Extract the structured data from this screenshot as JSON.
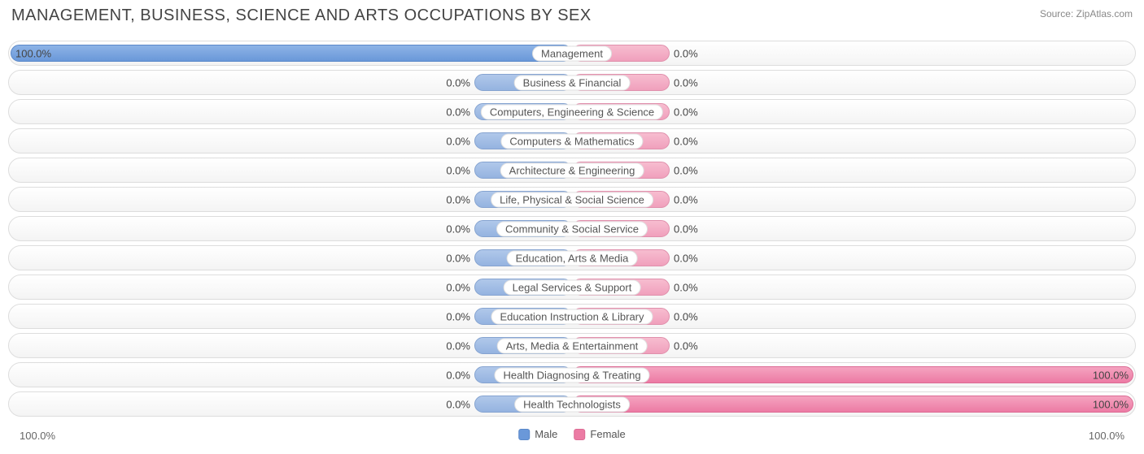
{
  "title": "MANAGEMENT, BUSINESS, SCIENCE AND ARTS OCCUPATIONS BY SEX",
  "source": "Source: ZipAtlas.com",
  "chart": {
    "type": "diverging-bar",
    "male_color": "#6a98d9",
    "male_color_light": "#95b3e0",
    "female_color": "#ec7ba4",
    "female_color_light": "#f0a0bc",
    "border_color": "#dddddd",
    "background_color": "#ffffff",
    "row_bg_gradient": [
      "#ffffff",
      "#f4f4f4"
    ],
    "title_fontsize": 20,
    "label_fontsize": 13,
    "axis_left_label": "100.0%",
    "axis_right_label": "100.0%",
    "legend": {
      "male": "Male",
      "female": "Female"
    },
    "rows": [
      {
        "category": "Management",
        "male_pct": 100.0,
        "female_pct": 0.0,
        "male_label": "100.0%",
        "female_label": "0.0%"
      },
      {
        "category": "Business & Financial",
        "male_pct": 0.0,
        "female_pct": 0.0,
        "male_label": "0.0%",
        "female_label": "0.0%"
      },
      {
        "category": "Computers, Engineering & Science",
        "male_pct": 0.0,
        "female_pct": 0.0,
        "male_label": "0.0%",
        "female_label": "0.0%"
      },
      {
        "category": "Computers & Mathematics",
        "male_pct": 0.0,
        "female_pct": 0.0,
        "male_label": "0.0%",
        "female_label": "0.0%"
      },
      {
        "category": "Architecture & Engineering",
        "male_pct": 0.0,
        "female_pct": 0.0,
        "male_label": "0.0%",
        "female_label": "0.0%"
      },
      {
        "category": "Life, Physical & Social Science",
        "male_pct": 0.0,
        "female_pct": 0.0,
        "male_label": "0.0%",
        "female_label": "0.0%"
      },
      {
        "category": "Community & Social Service",
        "male_pct": 0.0,
        "female_pct": 0.0,
        "male_label": "0.0%",
        "female_label": "0.0%"
      },
      {
        "category": "Education, Arts & Media",
        "male_pct": 0.0,
        "female_pct": 0.0,
        "male_label": "0.0%",
        "female_label": "0.0%"
      },
      {
        "category": "Legal Services & Support",
        "male_pct": 0.0,
        "female_pct": 0.0,
        "male_label": "0.0%",
        "female_label": "0.0%"
      },
      {
        "category": "Education Instruction & Library",
        "male_pct": 0.0,
        "female_pct": 0.0,
        "male_label": "0.0%",
        "female_label": "0.0%"
      },
      {
        "category": "Arts, Media & Entertainment",
        "male_pct": 0.0,
        "female_pct": 0.0,
        "male_label": "0.0%",
        "female_label": "0.0%"
      },
      {
        "category": "Health Diagnosing & Treating",
        "male_pct": 0.0,
        "female_pct": 100.0,
        "male_label": "0.0%",
        "female_label": "100.0%"
      },
      {
        "category": "Health Technologists",
        "male_pct": 0.0,
        "female_pct": 100.0,
        "male_label": "0.0%",
        "female_label": "100.0%"
      }
    ]
  }
}
